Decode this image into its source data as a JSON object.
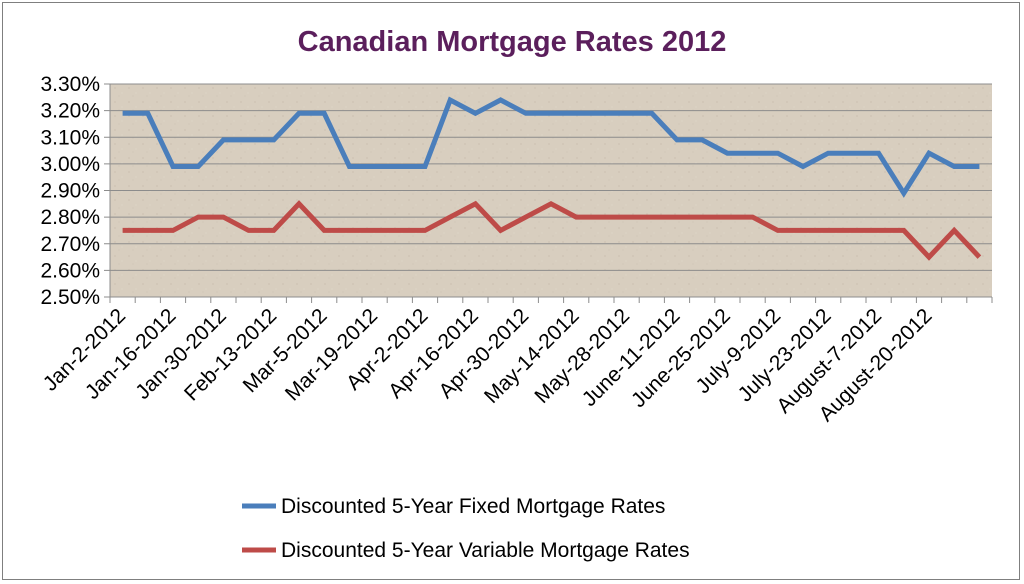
{
  "chart_data": {
    "type": "line",
    "title": "Canadian Mortgage Rates 2012",
    "xlabel": "",
    "ylabel": "",
    "ylim": [
      2.5,
      3.3
    ],
    "yticks": [
      "2.50%",
      "2.60%",
      "2.70%",
      "2.80%",
      "2.90%",
      "3.00%",
      "3.10%",
      "3.20%",
      "3.30%"
    ],
    "grid": true,
    "legend_position": "bottom",
    "x_tick_labels": [
      "Jan-2-2012",
      "Jan-16-2012",
      "Jan-30-2012",
      "Feb-13-2012",
      "Mar-5-2012",
      "Mar-19-2012",
      "Apr-2-2012",
      "Apr-16-2012",
      "Apr-30-2012",
      "May-14-2012",
      "May-28-2012",
      "June-11-2012",
      "June-25-2012",
      "July-9-2012",
      "July-23-2012",
      "August-7-2012",
      "August-20-2012"
    ],
    "colors": {
      "fixed": "#4a7ebb",
      "variable": "#be4b48",
      "plot_background": "#d8cebf",
      "title": "#5b1f5c"
    },
    "series": [
      {
        "name": "Discounted 5-Year Fixed Mortgage Rates",
        "values": [
          3.19,
          3.19,
          2.99,
          2.99,
          3.09,
          3.09,
          3.09,
          3.19,
          3.19,
          2.99,
          2.99,
          2.99,
          2.99,
          3.24,
          3.19,
          3.24,
          3.19,
          3.19,
          3.19,
          3.19,
          3.19,
          3.19,
          3.09,
          3.09,
          3.04,
          3.04,
          3.04,
          2.99,
          3.04,
          3.04,
          3.04,
          2.89,
          3.04,
          2.99,
          2.99
        ]
      },
      {
        "name": "Discounted 5-Year Variable Mortgage Rates",
        "values": [
          2.75,
          2.75,
          2.75,
          2.8,
          2.8,
          2.75,
          2.75,
          2.85,
          2.75,
          2.75,
          2.75,
          2.75,
          2.75,
          2.8,
          2.85,
          2.75,
          2.8,
          2.85,
          2.8,
          2.8,
          2.8,
          2.8,
          2.8,
          2.8,
          2.8,
          2.8,
          2.75,
          2.75,
          2.75,
          2.75,
          2.75,
          2.75,
          2.65,
          2.75,
          2.65
        ]
      }
    ]
  }
}
